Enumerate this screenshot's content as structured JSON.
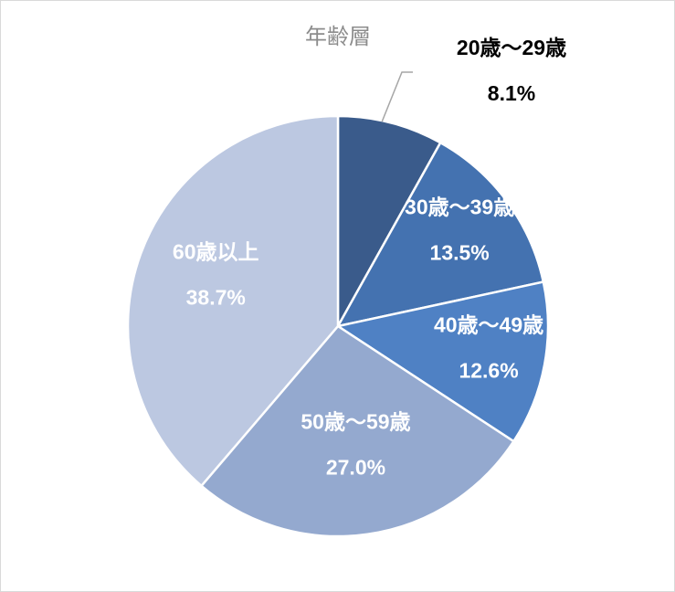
{
  "chart_data": {
    "type": "pie",
    "title": "年齢層",
    "categories": [
      "20歳～29歳",
      "30歳～39歳",
      "40歳～49歳",
      "50歳～59歳",
      "60歳以上"
    ],
    "values": [
      8.1,
      13.5,
      12.6,
      27.0,
      38.7
    ],
    "value_labels": [
      "8.1%",
      "13.5%",
      "12.6%",
      "27.0%",
      "38.7%"
    ],
    "colors": [
      "#3a5b8b",
      "#4472b0",
      "#4f81c4",
      "#94a9cf",
      "#bcc8e1"
    ],
    "label_colors": [
      "#000000",
      "#ffffff",
      "#ffffff",
      "#ffffff",
      "#ffffff"
    ],
    "legend": "none"
  }
}
